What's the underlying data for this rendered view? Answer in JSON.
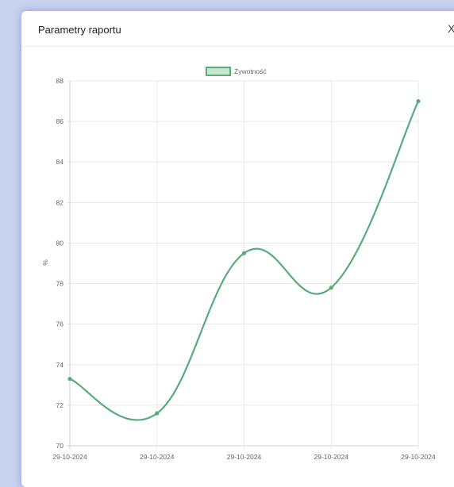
{
  "modal": {
    "title": "Parametry raportu",
    "close_label": "X"
  },
  "chart_data": {
    "type": "line",
    "categories": [
      "29-10-2024",
      "29-10-2024",
      "29-10-2024",
      "29-10-2024",
      "29-10-2024"
    ],
    "series": [
      {
        "name": "Żywotność",
        "values": [
          73.3,
          71.6,
          79.5,
          77.8,
          87.0
        ],
        "color": "#5aab79"
      }
    ],
    "ylabel": "%",
    "ylim": [
      70,
      88
    ],
    "yticks": [
      70,
      72,
      74,
      76,
      78,
      80,
      82,
      84,
      86,
      88
    ],
    "grid": true,
    "legend_position": "top-center",
    "smooth": true
  }
}
